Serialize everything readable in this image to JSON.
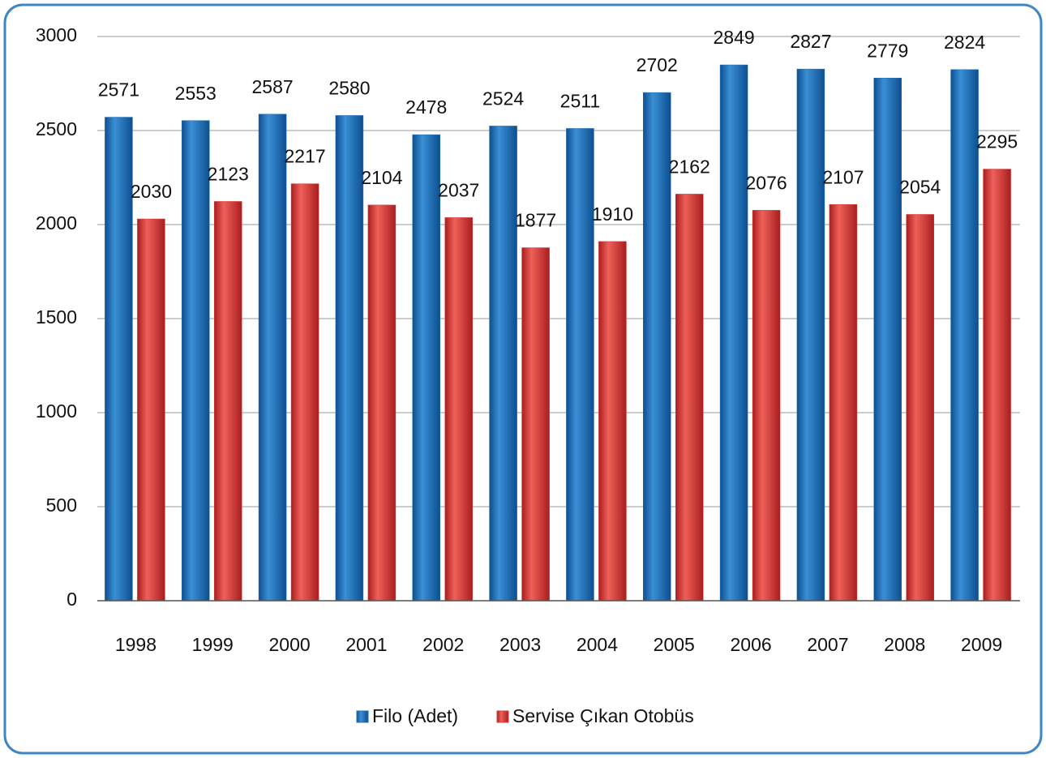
{
  "chart_data": {
    "type": "bar",
    "categories": [
      "1998",
      "1999",
      "2000",
      "2001",
      "2002",
      "2003",
      "2004",
      "2005",
      "2006",
      "2007",
      "2008",
      "2009"
    ],
    "series": [
      {
        "name": "Filo (Adet)",
        "color": "#1f6fb5",
        "values": [
          2571,
          2553,
          2587,
          2580,
          2478,
          2524,
          2511,
          2702,
          2849,
          2827,
          2779,
          2824
        ]
      },
      {
        "name": "Servise Çıkan Otobüs",
        "color": "#d93a3a",
        "values": [
          2030,
          2123,
          2217,
          2104,
          2037,
          1877,
          1910,
          2162,
          2076,
          2107,
          2054,
          2295
        ]
      }
    ],
    "ylim": [
      0,
      3000
    ],
    "yticks": [
      0,
      500,
      1000,
      1500,
      2000,
      2500,
      3000
    ],
    "grid": true,
    "legend": "bottom"
  }
}
